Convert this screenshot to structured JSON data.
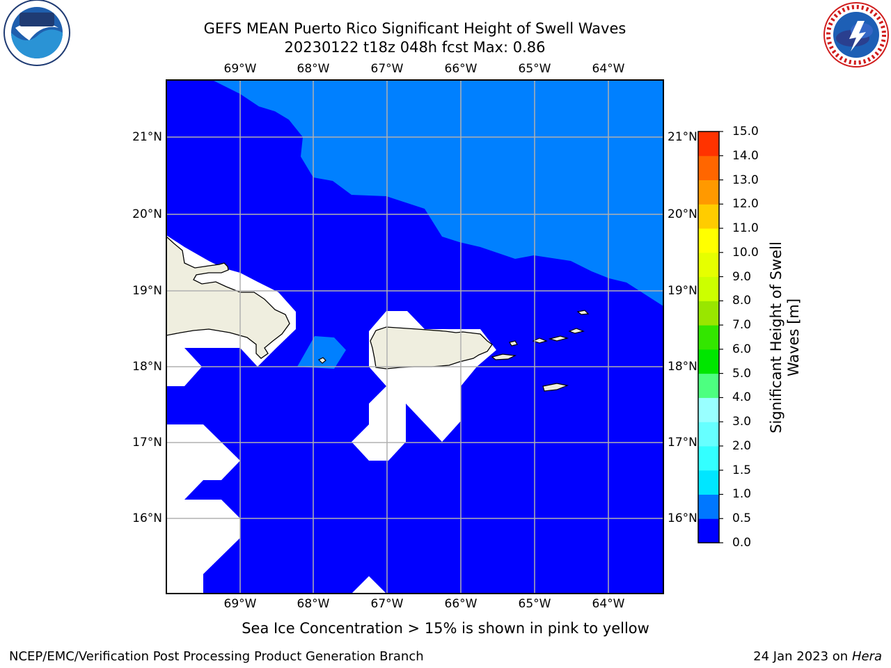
{
  "title_line1": "GEFS MEAN Puerto Rico Significant Height of Swell Waves",
  "title_line2": "20230122 t18z 048h fcst   Max: 0.86",
  "caption": "Sea Ice Concentration > 15% is shown in pink to yellow",
  "footer_left": "NCEP/EMC/Verification Post Processing Product Generation Branch",
  "footer_date": "24 Jan 2023 on ",
  "footer_host": "Hera",
  "logos": {
    "left": "noaa-logo",
    "right": "nws-logo"
  },
  "lon_labels": [
    "69°W",
    "68°W",
    "67°W",
    "66°W",
    "65°W",
    "64°W"
  ],
  "lat_labels": [
    "21°N",
    "20°N",
    "19°N",
    "18°N",
    "17°N",
    "16°N"
  ],
  "colorbar": {
    "title_line1": "Significant Height of Swell",
    "title_line2": "Waves [m]",
    "ticks": [
      "0.0",
      "0.5",
      "1.0",
      "1.5",
      "2.0",
      "3.0",
      "4.0",
      "5.0",
      "6.0",
      "7.0",
      "8.0",
      "9.0",
      "10.0",
      "11.0",
      "12.0",
      "13.0",
      "14.0",
      "15.0"
    ],
    "colors": [
      "#0000ff",
      "#0077ff",
      "#00e6ff",
      "#33ffff",
      "#66ffff",
      "#99ffff",
      "#4dff80",
      "#00e600",
      "#33e600",
      "#99e600",
      "#ccff00",
      "#e6ff00",
      "#ffff00",
      "#ffcc00",
      "#ff9900",
      "#ff6600",
      "#ff3300"
    ]
  },
  "map_colors": {
    "low_swell": "#0000ff",
    "mid_swell": "#0080ff",
    "land": "#efeedf",
    "grid": "#b0b0b0"
  }
}
